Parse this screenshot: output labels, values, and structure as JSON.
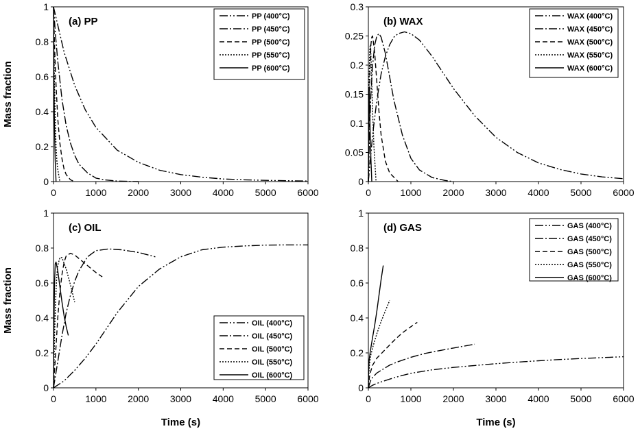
{
  "chart_data": [
    {
      "type": "line",
      "title": "(a) PP",
      "xlabel": "",
      "ylabel": "Mass fraction",
      "xlim": [
        0,
        6000
      ],
      "ylim": [
        0,
        1
      ],
      "xticks": [
        "0",
        "1000",
        "2000",
        "3000",
        "4000",
        "5000",
        "6000"
      ],
      "yticks": [
        "0",
        "0.2",
        "0.4",
        "0.6",
        "0.8",
        "1"
      ],
      "legend_position": "top-right",
      "series": [
        {
          "name": "PP (400°C)",
          "dash": "dashdotdot",
          "x": [
            0,
            250,
            500,
            750,
            1000,
            1500,
            2000,
            2500,
            3000,
            3500,
            4000,
            4500,
            5000,
            5500,
            6000
          ],
          "y": [
            1.0,
            0.74,
            0.55,
            0.41,
            0.31,
            0.18,
            0.11,
            0.065,
            0.04,
            0.025,
            0.015,
            0.01,
            0.007,
            0.005,
            0.003
          ]
        },
        {
          "name": "PP (450°C)",
          "dash": "dashdot",
          "x": [
            0,
            50,
            100,
            200,
            300,
            400,
            500,
            600,
            800,
            1000,
            1200,
            1500,
            2000
          ],
          "y": [
            1.0,
            0.83,
            0.69,
            0.47,
            0.32,
            0.22,
            0.15,
            0.1,
            0.05,
            0.02,
            0.01,
            0.003,
            0.0
          ]
        },
        {
          "name": "PP (500°C)",
          "dash": "dash",
          "x": [
            0,
            25,
            50,
            100,
            150,
            200,
            250,
            300,
            400,
            500
          ],
          "y": [
            1.0,
            0.78,
            0.6,
            0.36,
            0.22,
            0.13,
            0.07,
            0.04,
            0.01,
            0.0
          ]
        },
        {
          "name": "PP (550°C)",
          "dash": "dot",
          "x": [
            0,
            10,
            20,
            40,
            60,
            80,
            100,
            150
          ],
          "y": [
            1.0,
            0.78,
            0.6,
            0.36,
            0.2,
            0.12,
            0.07,
            0.0
          ]
        },
        {
          "name": "PP (600°C)",
          "dash": "solid",
          "x": [
            0,
            5,
            10,
            20,
            30,
            40,
            60
          ],
          "y": [
            1.0,
            0.8,
            0.62,
            0.38,
            0.22,
            0.12,
            0.0
          ]
        }
      ]
    },
    {
      "type": "line",
      "title": "(b) WAX",
      "xlabel": "",
      "ylabel": "",
      "xlim": [
        0,
        6000
      ],
      "ylim": [
        0,
        0.3
      ],
      "xticks": [
        "0",
        "1000",
        "2000",
        "3000",
        "4000",
        "5000",
        "6000"
      ],
      "yticks": [
        "0",
        "0.05",
        "0.1",
        "0.15",
        "0.2",
        "0.25",
        "0.3"
      ],
      "legend_position": "top-right",
      "series": [
        {
          "name": "WAX (400°C)",
          "dash": "dashdotdot",
          "x": [
            0,
            100,
            200,
            300,
            400,
            500,
            600,
            700,
            850,
            1000,
            1200,
            1500,
            2000,
            2500,
            3000,
            3500,
            4000,
            4500,
            5000,
            5500,
            6000
          ],
          "y": [
            0,
            0.08,
            0.14,
            0.185,
            0.215,
            0.235,
            0.248,
            0.254,
            0.257,
            0.254,
            0.243,
            0.215,
            0.16,
            0.113,
            0.076,
            0.05,
            0.032,
            0.021,
            0.013,
            0.008,
            0.005
          ]
        },
        {
          "name": "WAX (450°C)",
          "dash": "dashdot",
          "x": [
            0,
            30,
            60,
            100,
            150,
            200,
            250,
            300,
            400,
            500,
            600,
            800,
            1000,
            1200,
            1500,
            1800,
            2000
          ],
          "y": [
            0,
            0.09,
            0.15,
            0.2,
            0.235,
            0.25,
            0.254,
            0.248,
            0.22,
            0.18,
            0.14,
            0.08,
            0.04,
            0.02,
            0.007,
            0.002,
            0.0
          ]
        },
        {
          "name": "WAX (500°C)",
          "dash": "dash",
          "x": [
            0,
            20,
            40,
            60,
            80,
            100,
            150,
            200,
            250,
            300,
            400,
            500,
            700
          ],
          "y": [
            0,
            0.12,
            0.2,
            0.235,
            0.248,
            0.25,
            0.22,
            0.17,
            0.12,
            0.08,
            0.035,
            0.015,
            0.0
          ]
        },
        {
          "name": "WAX (550°C)",
          "dash": "dot",
          "x": [
            0,
            10,
            20,
            35,
            50,
            70,
            100,
            130,
            180
          ],
          "y": [
            0,
            0.12,
            0.18,
            0.23,
            0.235,
            0.2,
            0.12,
            0.06,
            0.0
          ]
        },
        {
          "name": "WAX (600°C)",
          "dash": "solid",
          "x": [
            0,
            5,
            10,
            20,
            30,
            40,
            60,
            80
          ],
          "y": [
            0,
            0.08,
            0.12,
            0.16,
            0.13,
            0.09,
            0.04,
            0.0
          ]
        }
      ]
    },
    {
      "type": "line",
      "title": "(c) OIL",
      "xlabel": "Time (s)",
      "ylabel": "Mass fraction",
      "xlim": [
        0,
        6000
      ],
      "ylim": [
        0,
        1
      ],
      "xticks": [
        "0",
        "1000",
        "2000",
        "3000",
        "4000",
        "5000",
        "6000"
      ],
      "yticks": [
        "0",
        "0.2",
        "0.4",
        "0.6",
        "0.8",
        "1"
      ],
      "legend_position": "bottom-right",
      "series": [
        {
          "name": "OIL (400°C)",
          "dash": "dashdotdot",
          "x": [
            0,
            250,
            500,
            750,
            1000,
            1500,
            2000,
            2500,
            3000,
            3500,
            4000,
            4500,
            5000,
            5500,
            6000
          ],
          "y": [
            0,
            0.04,
            0.1,
            0.17,
            0.25,
            0.43,
            0.58,
            0.68,
            0.75,
            0.79,
            0.805,
            0.812,
            0.817,
            0.818,
            0.818
          ]
        },
        {
          "name": "OIL (450°C)",
          "dash": "dashdot",
          "x": [
            0,
            100,
            200,
            300,
            400,
            500,
            600,
            700,
            800,
            1000,
            1300,
            1600,
            2000,
            2400
          ],
          "y": [
            0,
            0.15,
            0.3,
            0.43,
            0.53,
            0.61,
            0.67,
            0.71,
            0.75,
            0.785,
            0.795,
            0.79,
            0.775,
            0.75
          ]
        },
        {
          "name": "OIL (500°C)",
          "dash": "dash",
          "x": [
            0,
            50,
            100,
            150,
            200,
            250,
            300,
            400,
            500,
            600,
            800,
            1000,
            1150
          ],
          "y": [
            0,
            0.2,
            0.4,
            0.55,
            0.65,
            0.72,
            0.755,
            0.77,
            0.76,
            0.74,
            0.7,
            0.66,
            0.635
          ]
        },
        {
          "name": "OIL (550°C)",
          "dash": "dot",
          "x": [
            0,
            25,
            50,
            75,
            100,
            150,
            200,
            300,
            400,
            500
          ],
          "y": [
            0,
            0.3,
            0.5,
            0.63,
            0.7,
            0.745,
            0.745,
            0.68,
            0.59,
            0.49
          ]
        },
        {
          "name": "OIL (600°C)",
          "dash": "solid",
          "x": [
            0,
            10,
            25,
            40,
            60,
            100,
            150,
            200,
            250,
            300,
            350
          ],
          "y": [
            0,
            0.35,
            0.6,
            0.71,
            0.72,
            0.67,
            0.58,
            0.49,
            0.41,
            0.35,
            0.3
          ]
        }
      ]
    },
    {
      "type": "line",
      "title": "(d) GAS",
      "xlabel": "Time (s)",
      "ylabel": "",
      "xlim": [
        0,
        6000
      ],
      "ylim": [
        0,
        1
      ],
      "xticks": [
        "0",
        "1000",
        "2000",
        "3000",
        "4000",
        "5000",
        "6000"
      ],
      "yticks": [
        "0",
        "0.2",
        "0.4",
        "0.6",
        "0.8",
        "1"
      ],
      "legend_position": "top-right",
      "series": [
        {
          "name": "GAS (400°C)",
          "dash": "dashdotdot",
          "x": [
            0,
            100,
            250,
            500,
            750,
            1000,
            1500,
            2000,
            2500,
            3000,
            3500,
            4000,
            4500,
            5000,
            5500,
            6000
          ],
          "y": [
            0,
            0.015,
            0.03,
            0.05,
            0.068,
            0.083,
            0.103,
            0.117,
            0.128,
            0.138,
            0.147,
            0.155,
            0.162,
            0.168,
            0.173,
            0.178
          ]
        },
        {
          "name": "GAS (450°C)",
          "dash": "dashdot",
          "x": [
            0,
            50,
            100,
            200,
            300,
            400,
            500,
            700,
            1000,
            1300,
            1600,
            2000,
            2500
          ],
          "y": [
            0,
            0.04,
            0.06,
            0.085,
            0.1,
            0.115,
            0.13,
            0.15,
            0.175,
            0.195,
            0.21,
            0.228,
            0.25
          ]
        },
        {
          "name": "GAS (500°C)",
          "dash": "dash",
          "x": [
            0,
            25,
            50,
            100,
            200,
            300,
            400,
            500,
            600,
            800,
            1000,
            1150
          ],
          "y": [
            0,
            0.06,
            0.09,
            0.13,
            0.17,
            0.195,
            0.22,
            0.245,
            0.27,
            0.315,
            0.35,
            0.375
          ]
        },
        {
          "name": "GAS (550°C)",
          "dash": "dot",
          "x": [
            0,
            10,
            25,
            50,
            100,
            150,
            200,
            300,
            400,
            500
          ],
          "y": [
            0,
            0.07,
            0.13,
            0.18,
            0.23,
            0.27,
            0.31,
            0.38,
            0.44,
            0.5
          ]
        },
        {
          "name": "GAS (600°C)",
          "dash": "solid",
          "x": [
            0,
            5,
            10,
            20,
            40,
            60,
            100,
            150,
            200,
            250,
            300,
            350
          ],
          "y": [
            0,
            0.08,
            0.12,
            0.16,
            0.2,
            0.23,
            0.29,
            0.36,
            0.44,
            0.53,
            0.62,
            0.7
          ]
        }
      ]
    }
  ]
}
